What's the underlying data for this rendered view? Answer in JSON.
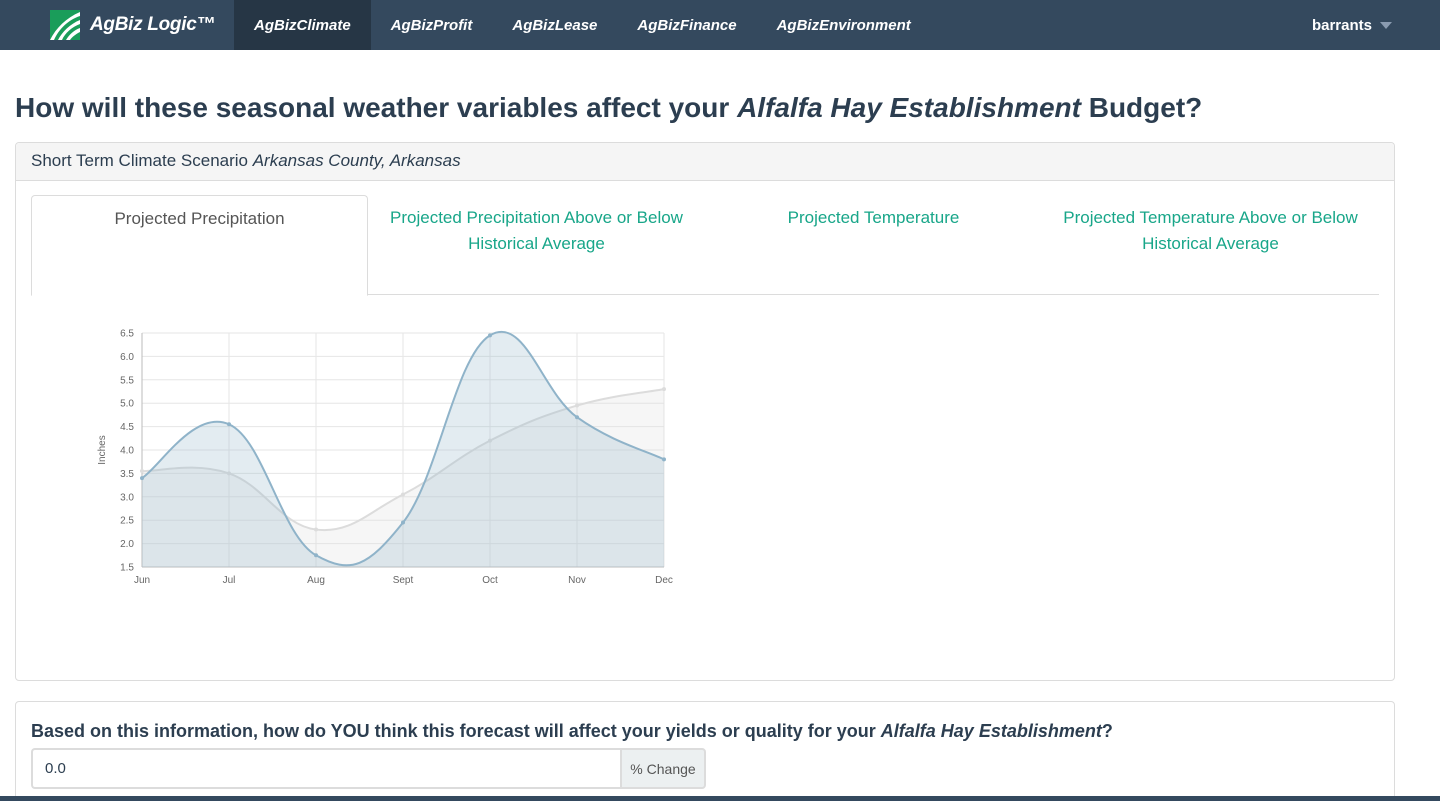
{
  "brand": {
    "name": "AgBiz Logic™"
  },
  "nav": [
    {
      "label": "AgBizClimate",
      "active": true
    },
    {
      "label": "AgBizProfit",
      "active": false
    },
    {
      "label": "AgBizLease",
      "active": false
    },
    {
      "label": "AgBizFinance",
      "active": false
    },
    {
      "label": "AgBizEnvironment",
      "active": false
    }
  ],
  "user": {
    "name": "barrants"
  },
  "page": {
    "title_pre": "How will these seasonal weather variables affect your ",
    "title_crop": "Alfalfa Hay Establishment",
    "title_post": " Budget?"
  },
  "panel": {
    "heading": "Short Term Climate Scenario ",
    "location": "Arkansas County, Arkansas"
  },
  "tabs": [
    {
      "label": "Projected Precipitation",
      "active": true
    },
    {
      "label": "Projected Precipitation Above or Below Historical Average",
      "active": false
    },
    {
      "label": "Projected Temperature",
      "active": false
    },
    {
      "label": "Projected Temperature Above or Below Historical Average",
      "active": false
    }
  ],
  "chart_data": {
    "type": "area",
    "categories": [
      "Jun",
      "Jul",
      "Aug",
      "Sept",
      "Oct",
      "Nov",
      "Dec"
    ],
    "series": [
      {
        "values": [
          3.4,
          4.55,
          1.75,
          2.45,
          6.45,
          4.7,
          3.8
        ],
        "color": "#8fb3c9"
      },
      {
        "values": [
          3.55,
          3.5,
          2.3,
          3.05,
          4.2,
          4.95,
          5.3
        ],
        "color": "#dcdcdc"
      }
    ],
    "ylabel": "Inches",
    "ylim": [
      1.5,
      6.5
    ],
    "yticks": [
      "1.5",
      "2.0",
      "2.5",
      "3.0",
      "3.5",
      "4.0",
      "4.5",
      "5.0",
      "5.5",
      "6.0",
      "6.5"
    ],
    "grid": true
  },
  "question": {
    "pre": "Based on this information, how do YOU think this forecast will affect your yields or quality for your ",
    "crop": "Alfalfa Hay Establishment",
    "post": "?",
    "value": "0.0",
    "addon": "% Change"
  }
}
